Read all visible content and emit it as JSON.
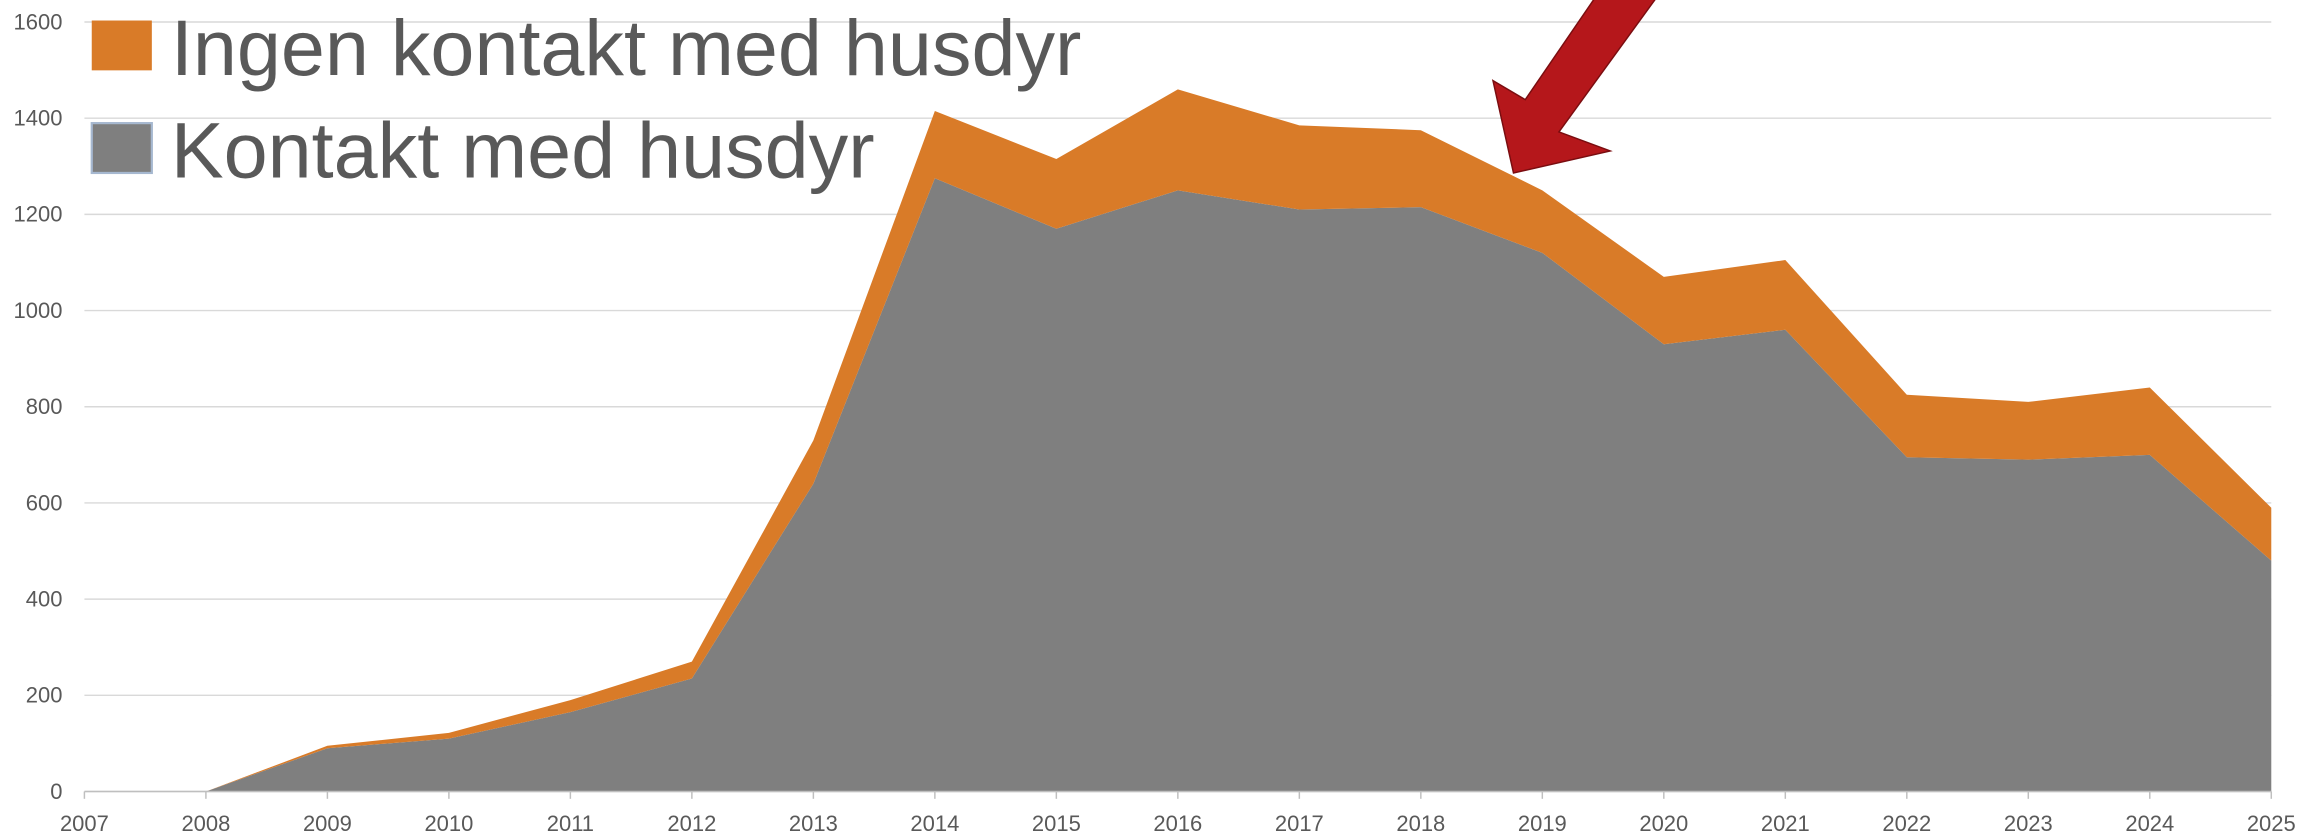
{
  "chart_data": {
    "type": "stacked_area",
    "x": [
      2008,
      2009,
      2010,
      2011,
      2012,
      2013,
      2014,
      2015,
      2016,
      2017,
      2018,
      2019,
      2020,
      2021,
      2022,
      2023,
      2024,
      2025
    ],
    "series": [
      {
        "name": "Kontakt med husdyr",
        "color": "#7f7f7f",
        "values": [
          0,
          90,
          110,
          165,
          235,
          640,
          1275,
          1170,
          1250,
          1210,
          1215,
          1120,
          930,
          960,
          695,
          690,
          700,
          480
        ]
      },
      {
        "name": "Ingen kontakt med husdyr",
        "color": "#d97b28",
        "values": [
          0,
          5,
          12,
          25,
          35,
          90,
          140,
          145,
          210,
          175,
          160,
          130,
          140,
          145,
          130,
          120,
          140,
          110
        ]
      }
    ],
    "xlim": [
      2007,
      2025
    ],
    "xticks": [
      2007,
      2008,
      2009,
      2010,
      2011,
      2012,
      2013,
      2014,
      2015,
      2016,
      2017,
      2018,
      2019,
      2020,
      2021,
      2022,
      2023,
      2024,
      2025
    ],
    "ylim": [
      0,
      1600
    ],
    "yticks": [
      0,
      200,
      400,
      600,
      800,
      1000,
      1200,
      1400,
      1600
    ],
    "grid": true
  }
}
